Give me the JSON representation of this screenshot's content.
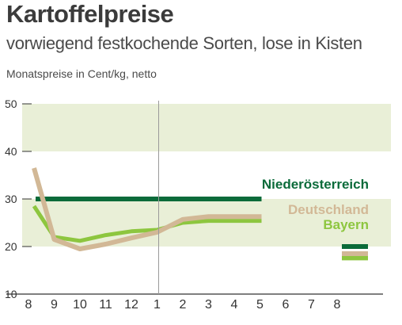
{
  "title": "Kartoffelpreise",
  "subtitle": "vorwiegend festkochende Sorten, lose in Kisten",
  "unit_label": "Monatspreise in Cent/kg, netto",
  "colors": {
    "Niederösterreich": "#0b6b3a",
    "Deutschland": "#d2b896",
    "Bayern": "#8dc63f",
    "band": "#e9efd7",
    "axis": "#333333",
    "divider": "#9a9a9a"
  },
  "chart_data": {
    "type": "line",
    "x": [
      "8",
      "9",
      "10",
      "11",
      "12",
      "1",
      "2",
      "3",
      "4",
      "5",
      "6",
      "7",
      "8"
    ],
    "ylim": [
      10,
      50
    ],
    "yticks": [
      "10",
      "20",
      "30",
      "40",
      "50"
    ],
    "bands": [
      [
        20,
        30
      ],
      [
        40,
        50
      ]
    ],
    "year_divider_at": "1",
    "series": [
      {
        "name": "Niederösterreich",
        "values": [
          30,
          30,
          30,
          30,
          30,
          30,
          30,
          30,
          30,
          30,
          null,
          null,
          20
        ]
      },
      {
        "name": "Deutschland",
        "values": [
          36.5,
          21.5,
          19.5,
          20.5,
          21.8,
          23,
          25.7,
          26.3,
          26.3,
          26.3,
          null,
          null,
          18.5
        ]
      },
      {
        "name": "Bayern",
        "values": [
          28.5,
          22,
          21.2,
          22.4,
          23.2,
          23.5,
          25,
          25.4,
          25.4,
          25.4,
          null,
          null,
          17.6
        ]
      }
    ]
  }
}
